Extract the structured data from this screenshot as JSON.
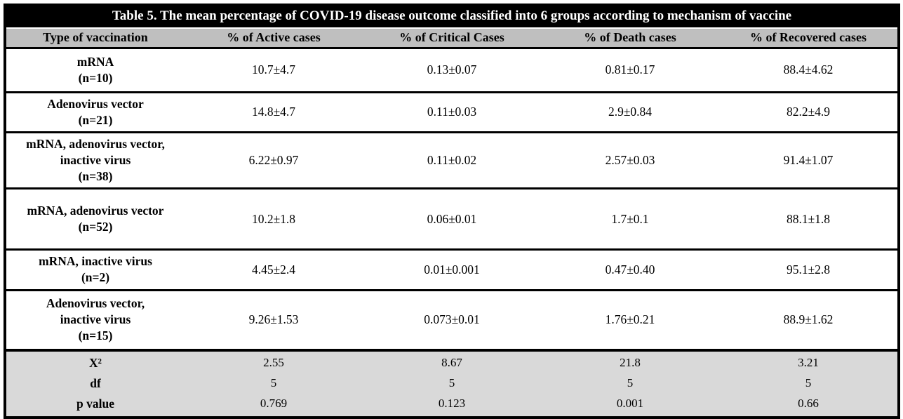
{
  "title": "Table 5. The mean percentage of COVID-19 disease outcome classified into 6 groups according to mechanism of vaccine",
  "columns": {
    "type": "Type of vaccination",
    "active": "% of Active cases",
    "critical": "% of Critical Cases",
    "death": "% of Death cases",
    "recovered": "% of Recovered cases"
  },
  "rows": [
    {
      "name": "mRNA",
      "n": "(n=10)",
      "active": "10.7±4.7",
      "critical": "0.13±0.07",
      "death": "0.81±0.17",
      "recovered": "88.4±4.62"
    },
    {
      "name": "Adenovirus vector",
      "n": "(n=21)",
      "active": "14.8±4.7",
      "critical": "0.11±0.03",
      "death": "2.9±0.84",
      "recovered": "82.2±4.9"
    },
    {
      "name": "mRNA, adenovirus vector, inactive virus",
      "n": "(n=38)",
      "active": "6.22±0.97",
      "critical": "0.11±0.02",
      "death": "2.57±0.03",
      "recovered": "91.4±1.07"
    },
    {
      "name": "mRNA, adenovirus vector",
      "n": "(n=52)",
      "active": "10.2±1.8",
      "critical": "0.06±0.01",
      "death": "1.7±0.1",
      "recovered": "88.1±1.8"
    },
    {
      "name": "mRNA, inactive virus",
      "n": "(n=2)",
      "active": "4.45±2.4",
      "critical": "0.01±0.001",
      "death": "0.47±0.40",
      "recovered": "95.1±2.8"
    },
    {
      "name": "Adenovirus vector, inactive virus",
      "n": "(n=15)",
      "active": "9.26±1.53",
      "critical": "0.073±0.01",
      "death": "1.76±0.21",
      "recovered": "88.9±1.62"
    }
  ],
  "stats": [
    {
      "label": "X²",
      "active": "2.55",
      "critical": "8.67",
      "death": "21.8",
      "recovered": "3.21"
    },
    {
      "label": "df",
      "active": "5",
      "critical": "5",
      "death": "5",
      "recovered": "5"
    },
    {
      "label": "p value",
      "active": "0.769",
      "critical": "0.123",
      "death": "0.001",
      "recovered": "0.66"
    }
  ],
  "colors": {
    "title_bg": "#000000",
    "title_text": "#ffffff",
    "header_bg": "#bfbfbf",
    "stats_bg": "#d9d9d9",
    "body_bg": "#ffffff",
    "border": "#000000"
  }
}
